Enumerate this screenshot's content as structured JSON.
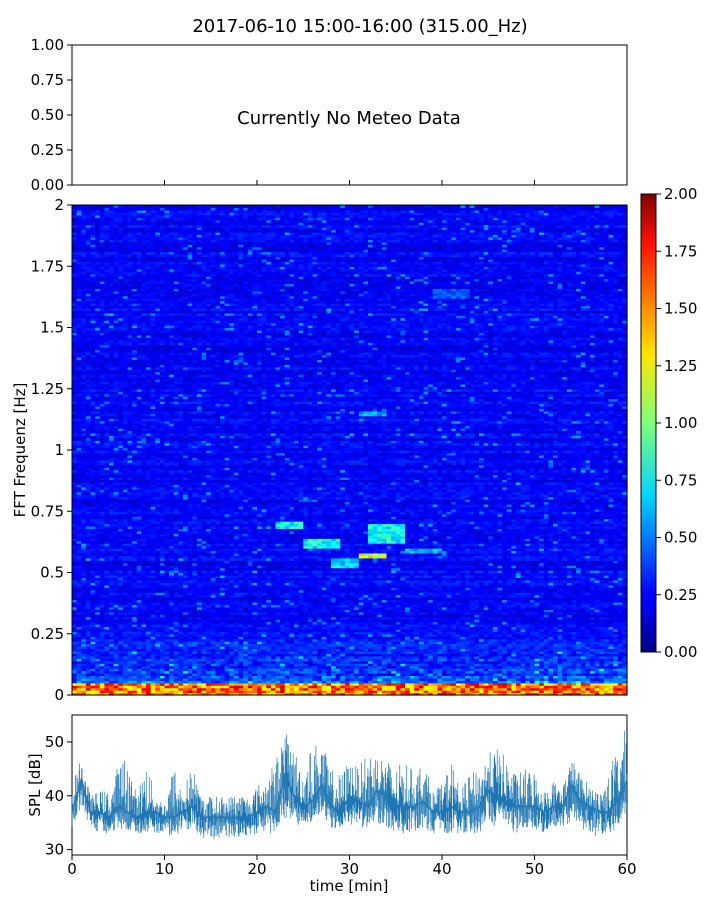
{
  "title": "2017-06-10 15:00-16:00 (315.00_Hz)",
  "chart_data": [
    {
      "type": "text-panel",
      "name": "meteo",
      "message": "Currently No Meteo Data",
      "ylim": [
        0,
        1
      ],
      "yticks": [
        "0.00",
        "0.25",
        "0.50",
        "0.75",
        "1.00"
      ]
    },
    {
      "type": "heatmap",
      "name": "spectrogram",
      "ylabel": "FFT Frequenz [Hz]",
      "xlim": [
        0,
        60
      ],
      "ylim": [
        0,
        2
      ],
      "yticks": [
        "0",
        "0.25",
        "0.5",
        "0.75",
        "1",
        "1.25",
        "1.5",
        "1.75",
        "2"
      ],
      "colormap": "jet",
      "colorbar": {
        "range": [
          0,
          2
        ],
        "ticks": [
          "0.00",
          "0.25",
          "0.50",
          "0.75",
          "1.00",
          "1.25",
          "1.50",
          "1.75",
          "2.00"
        ]
      },
      "notable_regions": [
        {
          "x": [
            0,
            60
          ],
          "y": [
            0,
            0.05
          ],
          "level": 1.6
        },
        {
          "x": [
            22,
            25
          ],
          "y": [
            0.68,
            0.71
          ],
          "level": 0.8
        },
        {
          "x": [
            25,
            29
          ],
          "y": [
            0.6,
            0.64
          ],
          "level": 0.8
        },
        {
          "x": [
            28,
            31
          ],
          "y": [
            0.52,
            0.56
          ],
          "level": 0.7
        },
        {
          "x": [
            31,
            34
          ],
          "y": [
            0.56,
            0.58
          ],
          "level": 1.3
        },
        {
          "x": [
            32,
            36
          ],
          "y": [
            0.62,
            0.7
          ],
          "level": 0.8
        },
        {
          "x": [
            36,
            40
          ],
          "y": [
            0.58,
            0.6
          ],
          "level": 0.6
        },
        {
          "x": [
            31,
            34
          ],
          "y": [
            1.14,
            1.16
          ],
          "level": 0.6
        },
        {
          "x": [
            39,
            43
          ],
          "y": [
            1.62,
            1.66
          ],
          "level": 0.45
        }
      ]
    },
    {
      "type": "line",
      "name": "spl",
      "xlabel": "time [min]",
      "ylabel": "SPL [dB]",
      "xlim": [
        0,
        60
      ],
      "ylim": [
        29,
        55
      ],
      "xticks": [
        "0",
        "10",
        "20",
        "30",
        "40",
        "50",
        "60"
      ],
      "yticks": [
        "30",
        "40",
        "50"
      ],
      "color": "#1f77b4",
      "x": [
        0,
        1,
        2,
        3,
        4,
        5,
        6,
        7,
        8,
        9,
        10,
        11,
        12,
        13,
        14,
        15,
        16,
        17,
        18,
        19,
        20,
        21,
        22,
        23,
        24,
        25,
        26,
        27,
        28,
        29,
        30,
        31,
        32,
        33,
        34,
        35,
        36,
        37,
        38,
        39,
        40,
        41,
        42,
        43,
        44,
        45,
        46,
        47,
        48,
        49,
        50,
        51,
        52,
        53,
        54,
        55,
        56,
        57,
        58,
        59,
        60
      ],
      "mean": [
        37,
        43,
        37,
        37,
        36,
        38,
        37,
        36,
        37,
        37,
        36,
        36,
        37,
        38,
        36,
        36,
        36,
        36,
        36,
        36,
        37,
        38,
        37,
        44,
        40,
        38,
        39,
        42,
        38,
        37,
        40,
        39,
        38,
        41,
        40,
        38,
        38,
        38,
        39,
        37,
        37,
        38,
        37,
        37,
        38,
        41,
        40,
        39,
        38,
        38,
        38,
        37,
        38,
        38,
        42,
        39,
        38,
        37,
        37,
        39,
        43
      ],
      "min": [
        34,
        38,
        34,
        33,
        33,
        34,
        33,
        33,
        33,
        33,
        33,
        32,
        33,
        34,
        32,
        32,
        32,
        32,
        32,
        32,
        33,
        33,
        33,
        36,
        35,
        34,
        35,
        36,
        34,
        34,
        34,
        34,
        34,
        35,
        34,
        33,
        33,
        33,
        34,
        33,
        33,
        33,
        33,
        33,
        33,
        35,
        34,
        34,
        33,
        34,
        34,
        33,
        34,
        34,
        35,
        34,
        33,
        32,
        33,
        34,
        37
      ],
      "max": [
        42,
        47,
        40,
        41,
        41,
        46,
        48,
        40,
        47,
        40,
        39,
        46,
        41,
        46,
        40,
        40,
        40,
        40,
        41,
        40,
        42,
        43,
        47,
        52,
        49,
        45,
        50,
        50,
        45,
        44,
        47,
        45,
        49,
        48,
        47,
        45,
        47,
        44,
        47,
        41,
        42,
        47,
        41,
        44,
        45,
        48,
        49,
        47,
        44,
        45,
        45,
        41,
        43,
        42,
        47,
        44,
        42,
        41,
        44,
        50,
        53
      ]
    }
  ]
}
